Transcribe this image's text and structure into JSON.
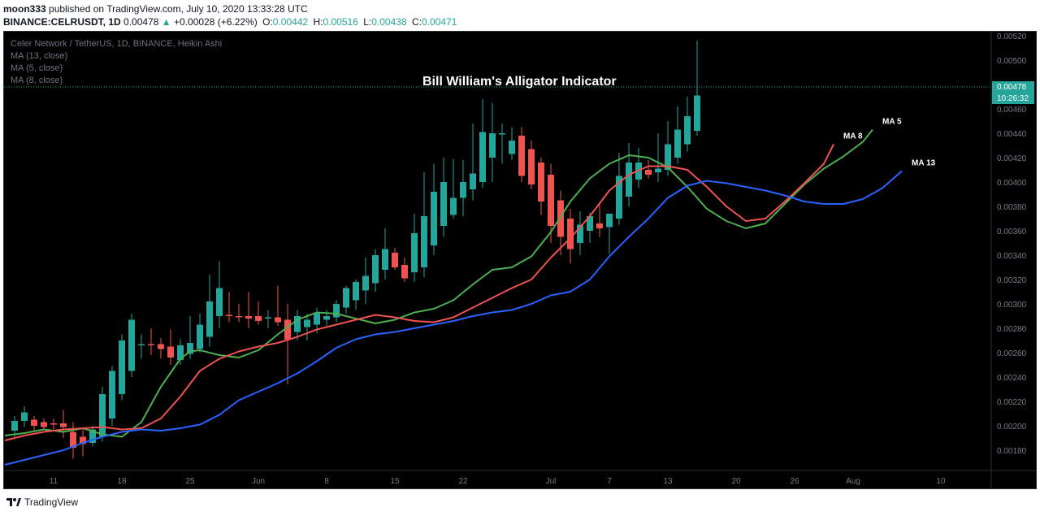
{
  "header": {
    "author": "moon333",
    "published": "published on TradingView.com, July 10, 2020 13:33:28 UTC",
    "symbol": "BINANCE:CELRUSDT, 1D",
    "last": "0.00478",
    "change_arrow": "▲",
    "change": "+0.00028 (+6.22%)",
    "o_label": "O:",
    "o_value": "0.00442",
    "h_label": "H:",
    "h_value": "0.00516",
    "l_label": "L:",
    "l_value": "0.00438",
    "c_label": "C:",
    "c_value": "0.00471"
  },
  "legend": {
    "title": "Celer Network / TetherUS, 1D, BINANCE, Heikin Ashi",
    "ma13": "MA (13, close)",
    "ma5": "MA (5, close)",
    "ma8": "MA (8, close)"
  },
  "footer": {
    "brand": "TradingView"
  },
  "colors": {
    "up": "#26a69a",
    "down": "#ef5350",
    "ma5": "#4caf50",
    "ma8": "#ef5350",
    "ma13": "#2962ff",
    "background": "#000000",
    "text": "#b2b5be"
  },
  "chart_data": {
    "type": "candlestick",
    "title": "Bill William's Alligator Indicator",
    "ylim": [
      0.0017,
      0.0052
    ],
    "y_ticks": [
      "0.00180",
      "0.00200",
      "0.00220",
      "0.00240",
      "0.00260",
      "0.00280",
      "0.00300",
      "0.00320",
      "0.00340",
      "0.00360",
      "0.00380",
      "0.00400",
      "0.00420",
      "0.00440",
      "0.00460",
      "0.00480",
      "0.00500",
      "0.00520"
    ],
    "x_ticks": [
      {
        "label": "11",
        "day": 4
      },
      {
        "label": "18",
        "day": 11
      },
      {
        "label": "25",
        "day": 18
      },
      {
        "label": "Jun",
        "day": 25
      },
      {
        "label": "8",
        "day": 32
      },
      {
        "label": "15",
        "day": 39
      },
      {
        "label": "22",
        "day": 46
      },
      {
        "label": "Jul",
        "day": 55
      },
      {
        "label": "7",
        "day": 61
      },
      {
        "label": "13",
        "day": 67
      },
      {
        "label": "20",
        "day": 74
      },
      {
        "label": "26",
        "day": 80
      },
      {
        "label": "Aug",
        "day": 86
      },
      {
        "label": "10",
        "day": 95
      }
    ],
    "current_price": {
      "label": "0.00478",
      "value": 0.00478,
      "countdown": "10:26:32"
    },
    "candles": [
      {
        "o": 0.00196,
        "h": 0.00208,
        "l": 0.00191,
        "c": 0.00204
      },
      {
        "o": 0.00204,
        "h": 0.00216,
        "l": 0.00199,
        "c": 0.00211
      },
      {
        "o": 0.00205,
        "h": 0.00208,
        "l": 0.00196,
        "c": 0.002
      },
      {
        "o": 0.00203,
        "h": 0.00206,
        "l": 0.00197,
        "c": 0.00199
      },
      {
        "o": 0.00202,
        "h": 0.00206,
        "l": 0.00197,
        "c": 0.00201
      },
      {
        "o": 0.00202,
        "h": 0.00213,
        "l": 0.0019,
        "c": 0.00199
      },
      {
        "o": 0.00195,
        "h": 0.00203,
        "l": 0.00173,
        "c": 0.00182
      },
      {
        "o": 0.00191,
        "h": 0.00198,
        "l": 0.00175,
        "c": 0.00185
      },
      {
        "o": 0.00186,
        "h": 0.002,
        "l": 0.00183,
        "c": 0.00197
      },
      {
        "o": 0.00191,
        "h": 0.00232,
        "l": 0.00187,
        "c": 0.00226
      },
      {
        "o": 0.00206,
        "h": 0.00249,
        "l": 0.002,
        "c": 0.00245
      },
      {
        "o": 0.00226,
        "h": 0.00275,
        "l": 0.00221,
        "c": 0.0027
      },
      {
        "o": 0.00245,
        "h": 0.00292,
        "l": 0.0024,
        "c": 0.00287
      },
      {
        "o": 0.00266,
        "h": 0.00275,
        "l": 0.00255,
        "c": 0.00267
      },
      {
        "o": 0.00267,
        "h": 0.0028,
        "l": 0.00258,
        "c": 0.00266
      },
      {
        "o": 0.00267,
        "h": 0.00272,
        "l": 0.00255,
        "c": 0.00263
      },
      {
        "o": 0.00265,
        "h": 0.00279,
        "l": 0.0025,
        "c": 0.00256
      },
      {
        "o": 0.00254,
        "h": 0.00271,
        "l": 0.0025,
        "c": 0.00266
      },
      {
        "o": 0.00259,
        "h": 0.0029,
        "l": 0.00255,
        "c": 0.00268
      },
      {
        "o": 0.00263,
        "h": 0.00292,
        "l": 0.0026,
        "c": 0.00283
      },
      {
        "o": 0.00273,
        "h": 0.00324,
        "l": 0.00265,
        "c": 0.00302
      },
      {
        "o": 0.0029,
        "h": 0.00335,
        "l": 0.0028,
        "c": 0.00313
      },
      {
        "o": 0.00291,
        "h": 0.0031,
        "l": 0.00285,
        "c": 0.0029
      },
      {
        "o": 0.0029,
        "h": 0.003,
        "l": 0.00285,
        "c": 0.00289
      },
      {
        "o": 0.0029,
        "h": 0.0031,
        "l": 0.0028,
        "c": 0.00288
      },
      {
        "o": 0.0029,
        "h": 0.00302,
        "l": 0.00283,
        "c": 0.00286
      },
      {
        "o": 0.00288,
        "h": 0.00295,
        "l": 0.0028,
        "c": 0.00289
      },
      {
        "o": 0.00289,
        "h": 0.00315,
        "l": 0.00282,
        "c": 0.00285
      },
      {
        "o": 0.00287,
        "h": 0.003,
        "l": 0.00234,
        "c": 0.00271
      },
      {
        "o": 0.00277,
        "h": 0.00295,
        "l": 0.0027,
        "c": 0.0029
      },
      {
        "o": 0.00281,
        "h": 0.00292,
        "l": 0.0027,
        "c": 0.00287
      },
      {
        "o": 0.00283,
        "h": 0.00297,
        "l": 0.00276,
        "c": 0.00293
      },
      {
        "o": 0.00287,
        "h": 0.00295,
        "l": 0.00282,
        "c": 0.0029
      },
      {
        "o": 0.00289,
        "h": 0.00303,
        "l": 0.00285,
        "c": 0.003
      },
      {
        "o": 0.00297,
        "h": 0.00315,
        "l": 0.00292,
        "c": 0.00313
      },
      {
        "o": 0.00303,
        "h": 0.0032,
        "l": 0.00295,
        "c": 0.00318
      },
      {
        "o": 0.00311,
        "h": 0.00338,
        "l": 0.003,
        "c": 0.00323
      },
      {
        "o": 0.00317,
        "h": 0.00345,
        "l": 0.0031,
        "c": 0.0034
      },
      {
        "o": 0.00328,
        "h": 0.00362,
        "l": 0.0032,
        "c": 0.00345
      },
      {
        "o": 0.00342,
        "h": 0.00346,
        "l": 0.00328,
        "c": 0.0033
      },
      {
        "o": 0.00332,
        "h": 0.00338,
        "l": 0.00318,
        "c": 0.00321
      },
      {
        "o": 0.00326,
        "h": 0.00374,
        "l": 0.00318,
        "c": 0.00358
      },
      {
        "o": 0.0033,
        "h": 0.00408,
        "l": 0.00322,
        "c": 0.00372
      },
      {
        "o": 0.00348,
        "h": 0.00415,
        "l": 0.0034,
        "c": 0.00392
      },
      {
        "o": 0.00364,
        "h": 0.0042,
        "l": 0.00355,
        "c": 0.004
      },
      {
        "o": 0.00373,
        "h": 0.00419,
        "l": 0.0037,
        "c": 0.00387
      },
      {
        "o": 0.00387,
        "h": 0.00418,
        "l": 0.00372,
        "c": 0.004
      },
      {
        "o": 0.00394,
        "h": 0.00448,
        "l": 0.00385,
        "c": 0.00407
      },
      {
        "o": 0.004,
        "h": 0.00468,
        "l": 0.00395,
        "c": 0.00441
      },
      {
        "o": 0.0042,
        "h": 0.00465,
        "l": 0.004,
        "c": 0.0044
      },
      {
        "o": 0.0044,
        "h": 0.00448,
        "l": 0.00415,
        "c": 0.0044
      },
      {
        "o": 0.00423,
        "h": 0.00445,
        "l": 0.00418,
        "c": 0.00434
      },
      {
        "o": 0.00438,
        "h": 0.00445,
        "l": 0.004,
        "c": 0.00405
      },
      {
        "o": 0.00427,
        "h": 0.00434,
        "l": 0.00394,
        "c": 0.00398
      },
      {
        "o": 0.00416,
        "h": 0.0042,
        "l": 0.00373,
        "c": 0.00384
      },
      {
        "o": 0.00406,
        "h": 0.00415,
        "l": 0.0035,
        "c": 0.00364
      },
      {
        "o": 0.00385,
        "h": 0.00393,
        "l": 0.0034,
        "c": 0.00355
      },
      {
        "o": 0.0037,
        "h": 0.00378,
        "l": 0.00333,
        "c": 0.00345
      },
      {
        "o": 0.0035,
        "h": 0.00376,
        "l": 0.0034,
        "c": 0.00365
      },
      {
        "o": 0.0036,
        "h": 0.00375,
        "l": 0.0035,
        "c": 0.00372
      },
      {
        "o": 0.00366,
        "h": 0.00382,
        "l": 0.00355,
        "c": 0.00362
      },
      {
        "o": 0.00363,
        "h": 0.00374,
        "l": 0.00341,
        "c": 0.00374
      },
      {
        "o": 0.0037,
        "h": 0.00424,
        "l": 0.00365,
        "c": 0.00405
      },
      {
        "o": 0.00388,
        "h": 0.00432,
        "l": 0.0038,
        "c": 0.00416
      },
      {
        "o": 0.00402,
        "h": 0.00428,
        "l": 0.00395,
        "c": 0.00416
      },
      {
        "o": 0.0041,
        "h": 0.00418,
        "l": 0.00403,
        "c": 0.00406
      },
      {
        "o": 0.00408,
        "h": 0.0044,
        "l": 0.004,
        "c": 0.00411
      },
      {
        "o": 0.0041,
        "h": 0.0045,
        "l": 0.00405,
        "c": 0.00431
      },
      {
        "o": 0.0042,
        "h": 0.00462,
        "l": 0.00415,
        "c": 0.00443
      },
      {
        "o": 0.00431,
        "h": 0.0047,
        "l": 0.00425,
        "c": 0.00454
      },
      {
        "o": 0.00442,
        "h": 0.00516,
        "l": 0.00438,
        "c": 0.00471
      }
    ],
    "series": [
      {
        "name": "MA 5",
        "color": "#4caf50",
        "points": [
          [
            -1,
            0.00192
          ],
          [
            1,
            0.00194
          ],
          [
            3,
            0.00197
          ],
          [
            5,
            0.00195
          ],
          [
            7,
            0.00198
          ],
          [
            9,
            0.00193
          ],
          [
            11,
            0.00191
          ],
          [
            13,
            0.00203
          ],
          [
            15,
            0.00232
          ],
          [
            17,
            0.00255
          ],
          [
            18,
            0.00261
          ],
          [
            19,
            0.00262
          ],
          [
            21,
            0.00258
          ],
          [
            23,
            0.00256
          ],
          [
            25,
            0.00262
          ],
          [
            27,
            0.00275
          ],
          [
            29,
            0.00287
          ],
          [
            31,
            0.00293
          ],
          [
            33,
            0.00292
          ],
          [
            35,
            0.00288
          ],
          [
            37,
            0.00284
          ],
          [
            39,
            0.00287
          ],
          [
            41,
            0.00293
          ],
          [
            43,
            0.00296
          ],
          [
            45,
            0.00303
          ],
          [
            47,
            0.00316
          ],
          [
            49,
            0.00328
          ],
          [
            51,
            0.0033
          ],
          [
            53,
            0.00339
          ],
          [
            55,
            0.00359
          ],
          [
            57,
            0.00384
          ],
          [
            59,
            0.00403
          ],
          [
            61,
            0.00415
          ],
          [
            63,
            0.00422
          ],
          [
            65,
            0.0042
          ],
          [
            67,
            0.00412
          ],
          [
            69,
            0.00396
          ],
          [
            71,
            0.00378
          ],
          [
            73,
            0.00368
          ],
          [
            75,
            0.00362
          ],
          [
            77,
            0.00366
          ],
          [
            79,
            0.00382
          ],
          [
            81,
            0.00398
          ],
          [
            83,
            0.00411
          ],
          [
            85,
            0.00421
          ],
          [
            87,
            0.00433
          ],
          [
            88,
            0.00443
          ]
        ]
      },
      {
        "name": "MA 8",
        "color": "#ef5350",
        "points": [
          [
            -1,
            0.00188
          ],
          [
            1,
            0.00192
          ],
          [
            3,
            0.00195
          ],
          [
            5,
            0.00197
          ],
          [
            7,
            0.00198
          ],
          [
            9,
            0.00199
          ],
          [
            11,
            0.00197
          ],
          [
            13,
            0.00198
          ],
          [
            15,
            0.00206
          ],
          [
            17,
            0.00224
          ],
          [
            19,
            0.00245
          ],
          [
            21,
            0.00255
          ],
          [
            23,
            0.00261
          ],
          [
            25,
            0.00265
          ],
          [
            27,
            0.00268
          ],
          [
            29,
            0.00273
          ],
          [
            31,
            0.00279
          ],
          [
            33,
            0.00283
          ],
          [
            35,
            0.00287
          ],
          [
            37,
            0.00291
          ],
          [
            39,
            0.00289
          ],
          [
            41,
            0.00286
          ],
          [
            43,
            0.00285
          ],
          [
            45,
            0.00289
          ],
          [
            47,
            0.00297
          ],
          [
            49,
            0.00305
          ],
          [
            51,
            0.00313
          ],
          [
            53,
            0.0032
          ],
          [
            55,
            0.00338
          ],
          [
            57,
            0.00354
          ],
          [
            59,
            0.00372
          ],
          [
            61,
            0.00393
          ],
          [
            63,
            0.00406
          ],
          [
            65,
            0.00413
          ],
          [
            67,
            0.00413
          ],
          [
            69,
            0.0041
          ],
          [
            71,
            0.00396
          ],
          [
            73,
            0.0038
          ],
          [
            75,
            0.00368
          ],
          [
            77,
            0.0037
          ],
          [
            79,
            0.00384
          ],
          [
            81,
            0.00399
          ],
          [
            83,
            0.00415
          ],
          [
            84,
            0.00431
          ]
        ]
      },
      {
        "name": "MA 13",
        "color": "#2962ff",
        "points": [
          [
            -1,
            0.00168
          ],
          [
            1,
            0.00172
          ],
          [
            3,
            0.00176
          ],
          [
            5,
            0.0018
          ],
          [
            7,
            0.00186
          ],
          [
            9,
            0.00191
          ],
          [
            11,
            0.00195
          ],
          [
            13,
            0.00197
          ],
          [
            15,
            0.00196
          ],
          [
            17,
            0.00198
          ],
          [
            19,
            0.00201
          ],
          [
            21,
            0.00209
          ],
          [
            23,
            0.00221
          ],
          [
            25,
            0.00228
          ],
          [
            27,
            0.00235
          ],
          [
            29,
            0.00243
          ],
          [
            31,
            0.00253
          ],
          [
            33,
            0.00264
          ],
          [
            35,
            0.00271
          ],
          [
            37,
            0.00275
          ],
          [
            39,
            0.00277
          ],
          [
            41,
            0.0028
          ],
          [
            43,
            0.00283
          ],
          [
            45,
            0.00286
          ],
          [
            47,
            0.0029
          ],
          [
            49,
            0.00293
          ],
          [
            51,
            0.00295
          ],
          [
            53,
            0.003
          ],
          [
            55,
            0.00307
          ],
          [
            57,
            0.0031
          ],
          [
            59,
            0.0032
          ],
          [
            61,
            0.00339
          ],
          [
            63,
            0.00355
          ],
          [
            65,
            0.0037
          ],
          [
            67,
            0.00387
          ],
          [
            69,
            0.00397
          ],
          [
            71,
            0.00401
          ],
          [
            73,
            0.00399
          ],
          [
            75,
            0.00396
          ],
          [
            77,
            0.00393
          ],
          [
            79,
            0.00389
          ],
          [
            81,
            0.00384
          ],
          [
            83,
            0.00382
          ],
          [
            85,
            0.00382
          ],
          [
            87,
            0.00386
          ],
          [
            89,
            0.00395
          ],
          [
            91,
            0.00409
          ]
        ]
      }
    ]
  }
}
